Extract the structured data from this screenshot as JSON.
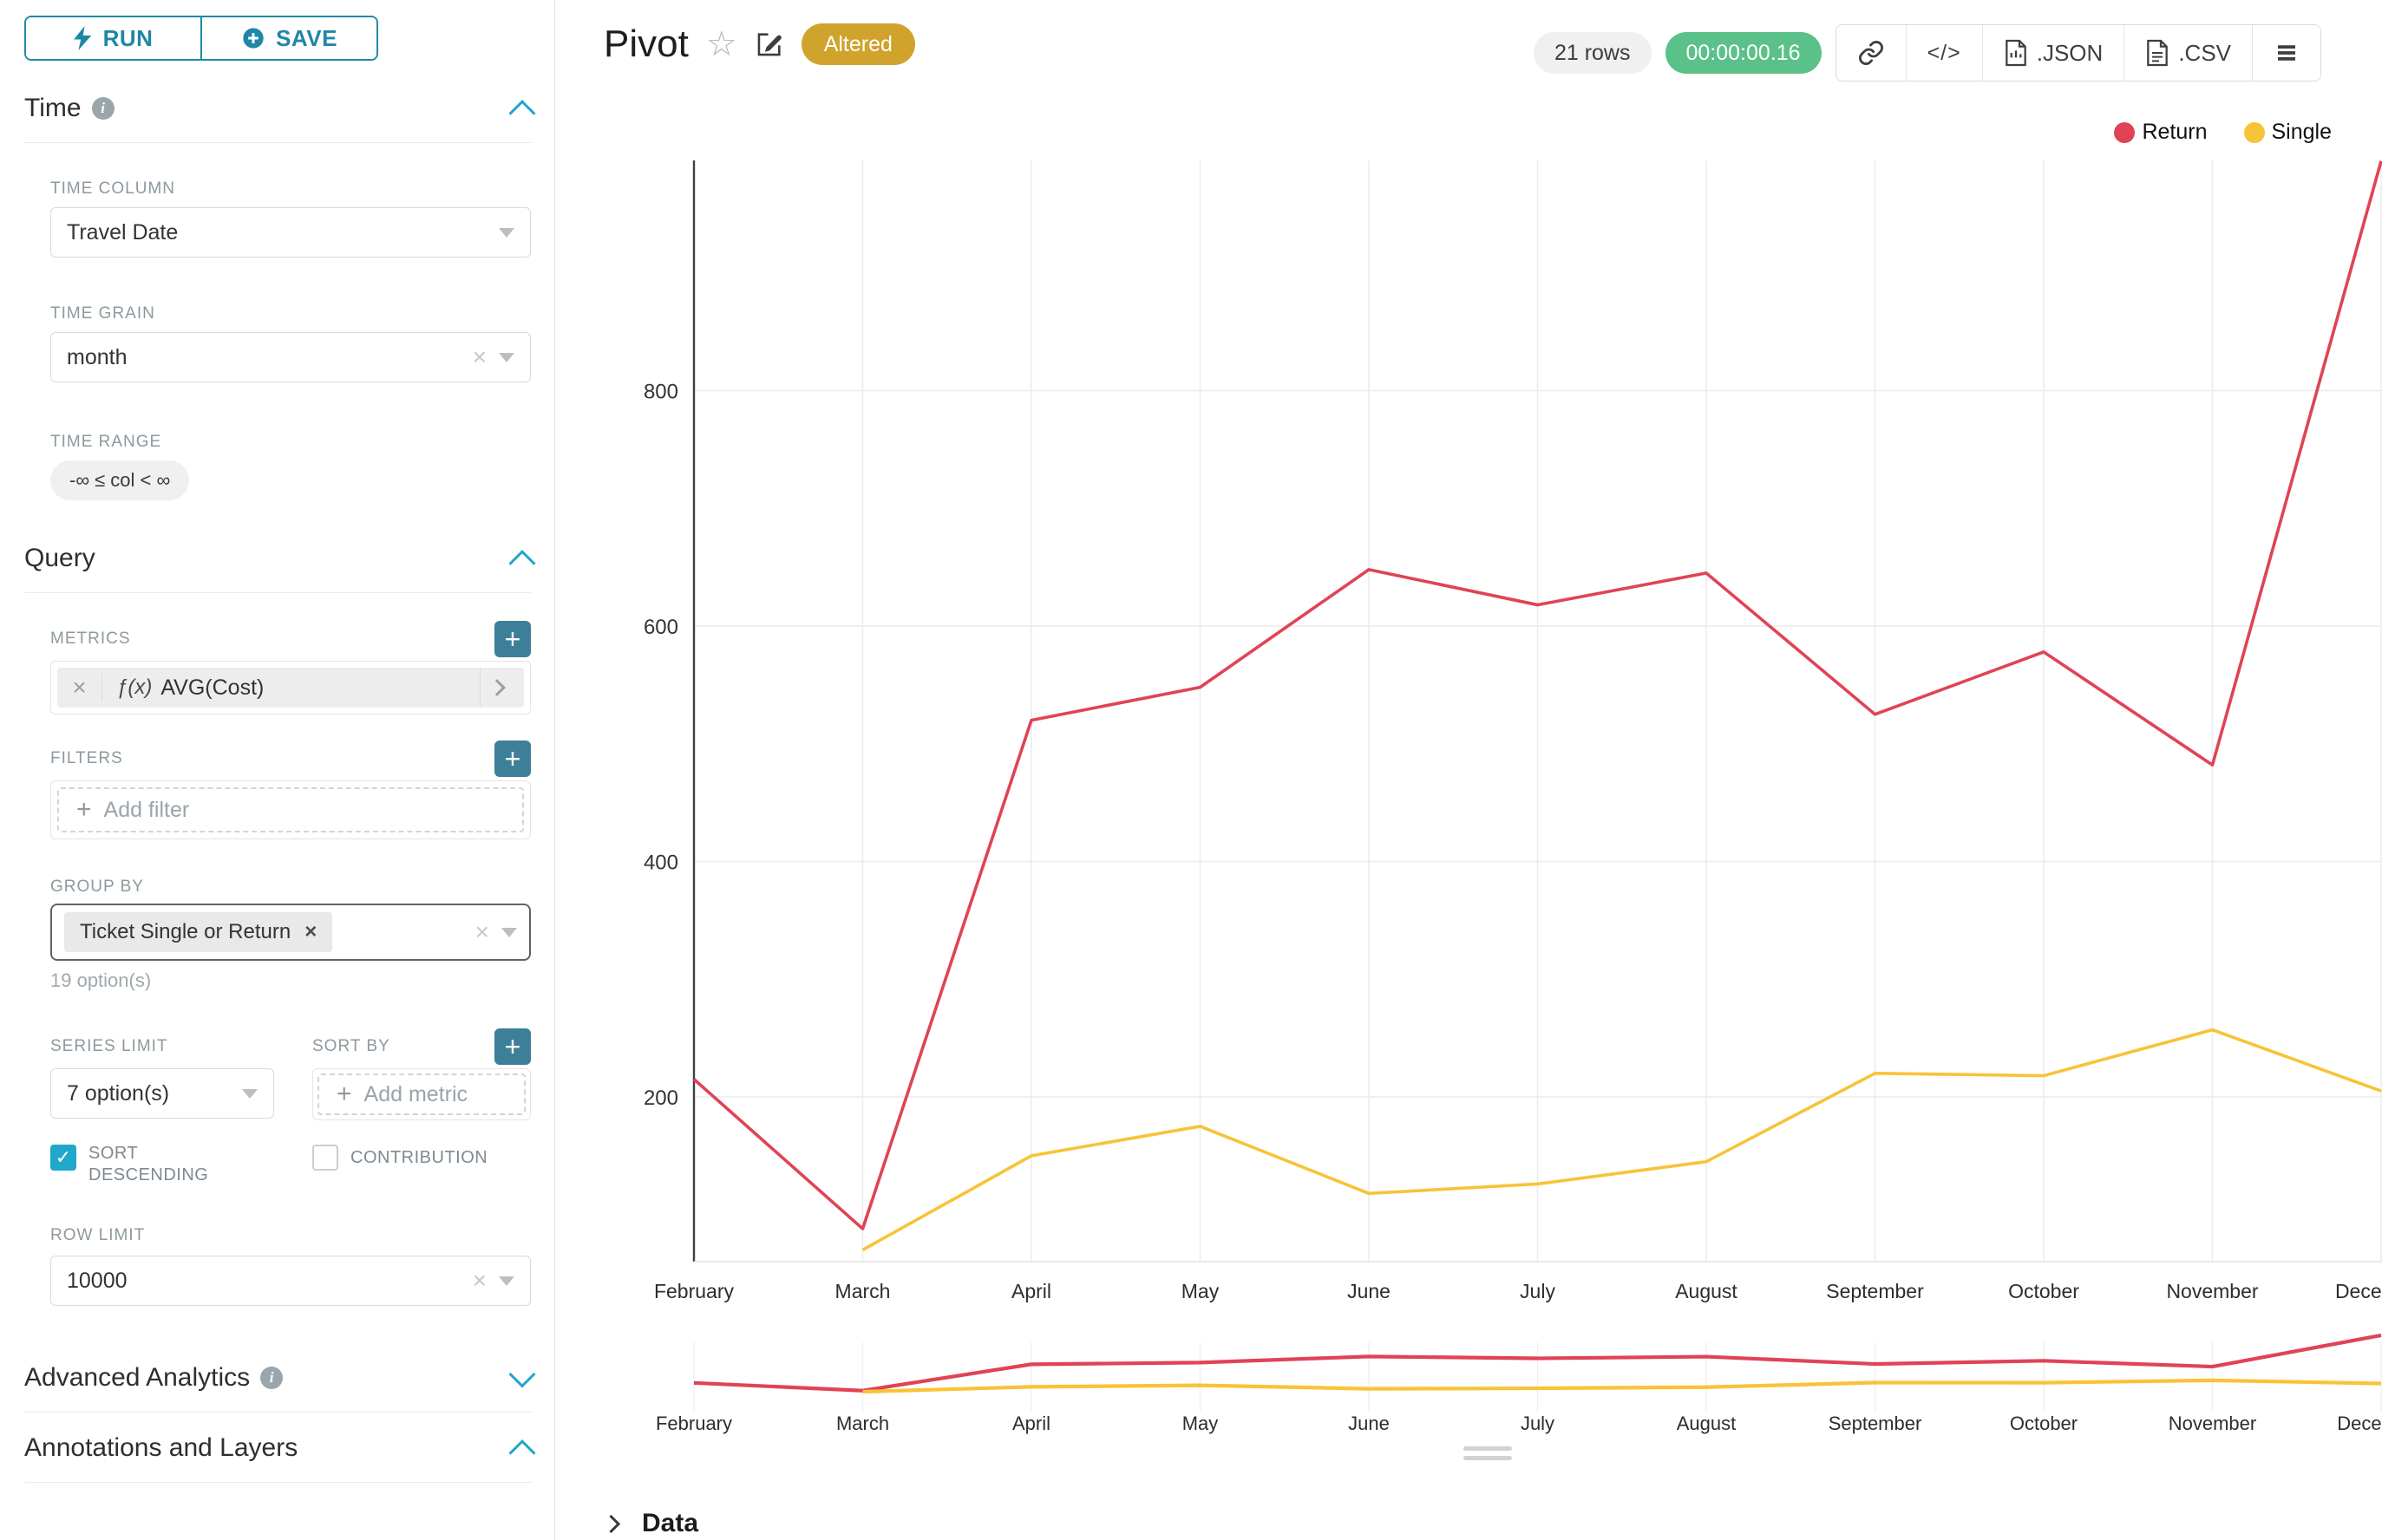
{
  "colors": {
    "accent": "#20a7c9",
    "altered_badge": "#d0a32c",
    "timer_green": "#5ac189"
  },
  "icons": {
    "plus": "+",
    "close": "×",
    "check": "✓",
    "star": "☆",
    "code": "</>",
    "menu": "≡"
  },
  "sidebar": {
    "run_label": "RUN",
    "save_label": "SAVE",
    "time": {
      "title": "Time",
      "time_column_label": "TIME COLUMN",
      "time_column_value": "Travel Date",
      "time_grain_label": "TIME GRAIN",
      "time_grain_value": "month",
      "time_range_label": "TIME RANGE",
      "time_range_value": "-∞ ≤ col < ∞"
    },
    "query": {
      "title": "Query",
      "metrics_label": "METRICS",
      "metric_prefix": "ƒ(x)",
      "metric_value": "AVG(Cost)",
      "filters_label": "FILTERS",
      "add_filter_label": "Add filter",
      "group_by_label": "GROUP BY",
      "group_by_tag": "Ticket Single or Return",
      "group_by_hint": "19 option(s)",
      "series_limit_label": "SERIES LIMIT",
      "series_limit_value": "7 option(s)",
      "sort_by_label": "SORT BY",
      "add_metric_label": "Add metric",
      "sort_descending_label": "SORT DESCENDING",
      "contribution_label": "CONTRIBUTION",
      "row_limit_label": "ROW LIMIT",
      "row_limit_value": "10000"
    },
    "advanced_analytics_label": "Advanced Analytics",
    "annotations_label": "Annotations and Layers"
  },
  "header": {
    "title": "Pivot",
    "altered_badge": "Altered",
    "rows_badge": "21 rows",
    "timer_badge": "00:00:00.16",
    "export_json_label": ".JSON",
    "export_csv_label": ".CSV"
  },
  "footer": {
    "data_label": "Data"
  },
  "chart_data": {
    "type": "line",
    "title": "",
    "xlabel": "",
    "ylabel": "",
    "categories": [
      "February",
      "March",
      "April",
      "May",
      "June",
      "July",
      "August",
      "September",
      "October",
      "November",
      "December"
    ],
    "series": [
      {
        "name": "Return",
        "color": "#e04355",
        "values": [
          215,
          88,
          520,
          548,
          648,
          618,
          645,
          525,
          578,
          482,
          995
        ]
      },
      {
        "name": "Single",
        "color": "#f7c338",
        "values": [
          null,
          70,
          150,
          175,
          118,
          126,
          145,
          220,
          218,
          257,
          205
        ]
      }
    ],
    "yticks": [
      200,
      400,
      600,
      800
    ],
    "ylim": [
      60,
      1000
    ],
    "grid": true,
    "legend_position": "top-right",
    "has_mini_zoom_chart": true
  }
}
